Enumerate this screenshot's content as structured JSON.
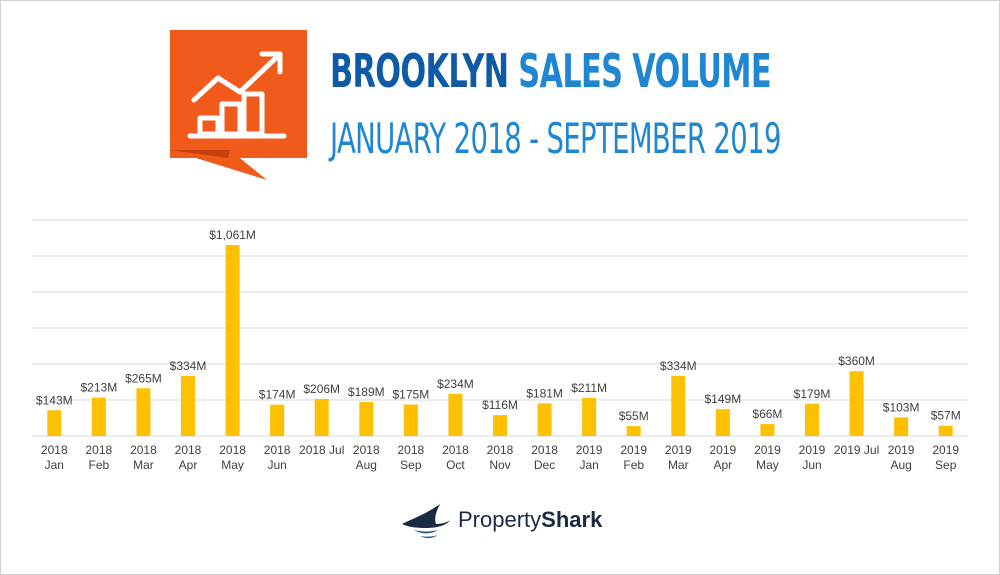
{
  "header": {
    "title_strong": "BROOKLYN",
    "title_light": "SALES VOLUME",
    "subtitle": "JANUARY 2018 - SEPTEMBER 2019",
    "logo_icon": "rising-bar-chart-icon"
  },
  "brand": {
    "name_light": "Property",
    "name_bold": "Shark",
    "icon": "shark-fin-icon"
  },
  "colors": {
    "bar": "#ffc000",
    "grid": "#d9d9d9",
    "label": "#404040",
    "logo_bg": "#f05a1a",
    "title_dark": "#0d5aa7",
    "title_light": "#1f86d1"
  },
  "chart_data": {
    "type": "bar",
    "categories": [
      [
        "2018",
        "Jan"
      ],
      [
        "2018",
        "Feb"
      ],
      [
        "2018",
        "Mar"
      ],
      [
        "2018",
        "Apr"
      ],
      [
        "2018",
        "May"
      ],
      [
        "2018",
        "Jun"
      ],
      [
        "2018 Jul"
      ],
      [
        "2018",
        "Aug"
      ],
      [
        "2018",
        "Sep"
      ],
      [
        "2018",
        "Oct"
      ],
      [
        "2018",
        "Nov"
      ],
      [
        "2018",
        "Dec"
      ],
      [
        "2019",
        "Jan"
      ],
      [
        "2019",
        "Feb"
      ],
      [
        "2019",
        "Mar"
      ],
      [
        "2019",
        "Apr"
      ],
      [
        "2019",
        "May"
      ],
      [
        "2019",
        "Jun"
      ],
      [
        "2019 Jul"
      ],
      [
        "2019",
        "Aug"
      ],
      [
        "2019",
        "Sep"
      ]
    ],
    "values": [
      143,
      213,
      265,
      334,
      1061,
      174,
      206,
      189,
      175,
      234,
      116,
      181,
      211,
      55,
      334,
      149,
      66,
      179,
      360,
      103,
      57
    ],
    "data_labels": [
      "$143M",
      "$213M",
      "$265M",
      "$334M",
      "$1,061M",
      "$174M",
      "$206M",
      "$189M",
      "$175M",
      "$234M",
      "$116M",
      "$181M",
      "$211M",
      "$55M",
      "$334M",
      "$149M",
      "$66M",
      "$179M",
      "$360M",
      "$103M",
      "$57M"
    ],
    "unit": "$M",
    "ylim": [
      0,
      1200
    ],
    "grid_step": 200,
    "grid": true,
    "legend": "none"
  }
}
